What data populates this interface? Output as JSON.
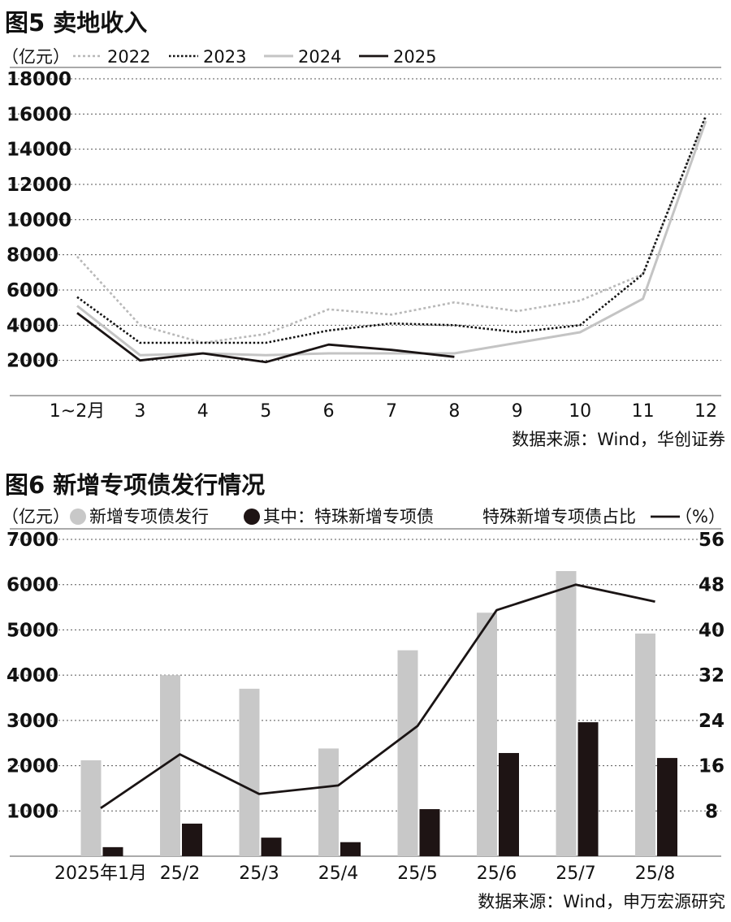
{
  "chart_data": [
    {
      "type": "line",
      "title": "图5 卖地收入",
      "ylabel": "（亿元）",
      "categories": [
        "1~2月",
        "3",
        "4",
        "5",
        "6",
        "7",
        "8",
        "9",
        "10",
        "11",
        "12"
      ],
      "ylim": [
        0,
        18000
      ],
      "yticks": [
        2000,
        4000,
        6000,
        8000,
        10000,
        12000,
        14000,
        16000,
        18000
      ],
      "grid": true,
      "legend_position": "top",
      "series": [
        {
          "name": "2022",
          "style": "dotted-gray",
          "color": "#b8b8b8",
          "values": [
            7900,
            4000,
            3000,
            3500,
            4900,
            4600,
            5300,
            4800,
            5400,
            6900,
            15800
          ]
        },
        {
          "name": "2023",
          "style": "dotted-black",
          "color": "#111111",
          "values": [
            5600,
            3000,
            3000,
            3000,
            3700,
            4100,
            4000,
            3600,
            4000,
            6900,
            15900
          ]
        },
        {
          "name": "2024",
          "style": "solid-gray",
          "color": "#c4c4c4",
          "values": [
            5100,
            2300,
            2400,
            2300,
            2400,
            2400,
            2400,
            3000,
            3600,
            5500,
            15600
          ]
        },
        {
          "name": "2025",
          "style": "solid-black",
          "color": "#1a1414",
          "values": [
            4700,
            2000,
            2400,
            1900,
            2900,
            2600,
            2200,
            null,
            null,
            null,
            null
          ]
        }
      ],
      "source": "数据来源：Wind，华创证券"
    },
    {
      "type": "bar",
      "title": "图6 新增专项债发行情况",
      "ylabel": "（亿元）",
      "y2label": "（%）",
      "categories": [
        "2025年1月",
        "25/2",
        "25/3",
        "25/4",
        "25/5",
        "25/6",
        "25/7",
        "25/8"
      ],
      "ylim": [
        0,
        7000
      ],
      "yticks": [
        1000,
        2000,
        3000,
        4000,
        5000,
        6000,
        7000
      ],
      "y2lim": [
        0,
        56
      ],
      "y2ticks": [
        8,
        16,
        24,
        32,
        40,
        48,
        56
      ],
      "grid": true,
      "legend_position": "top",
      "series": [
        {
          "name": "新增专项债发行",
          "kind": "bar",
          "color": "#c8c8c8",
          "values": [
            2120,
            4000,
            3700,
            2380,
            4550,
            5380,
            6300,
            4920
          ]
        },
        {
          "name": "其中：特珠新增专项债",
          "kind": "bar",
          "color": "#1e1414",
          "values": [
            200,
            720,
            410,
            310,
            1040,
            2280,
            2960,
            2170
          ]
        },
        {
          "name": "特殊新增专项债占比",
          "kind": "line",
          "axis": "right",
          "color": "#1a1414",
          "values": [
            8.5,
            18,
            11,
            12.5,
            23,
            43.5,
            48,
            45
          ]
        }
      ],
      "source": "数据来源：Wind，申万宏源研究"
    }
  ]
}
